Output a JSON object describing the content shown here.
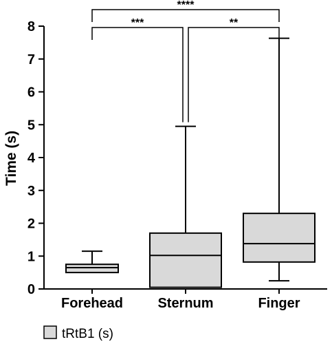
{
  "chart_data": {
    "type": "boxplot",
    "ylabel": "Time (s)",
    "ylim": [
      0,
      8
    ],
    "yticks": [
      0,
      1,
      2,
      3,
      4,
      5,
      6,
      7,
      8
    ],
    "categories": [
      "Forehead",
      "Sternum",
      "Finger"
    ],
    "series": [
      {
        "name": "tRtB1 (s)",
        "color": "#d9d9d9",
        "boxes": [
          {
            "min": 0.5,
            "q1": 0.5,
            "median": 0.65,
            "q3": 0.75,
            "max": 1.15
          },
          {
            "min": 0.05,
            "q1": 0.05,
            "median": 1.02,
            "q3": 1.7,
            "max": 4.95
          },
          {
            "min": 0.25,
            "q1": 0.82,
            "median": 1.38,
            "q3": 2.3,
            "max": 7.63
          }
        ]
      }
    ],
    "significance": [
      {
        "from": "Forehead",
        "to": "Finger",
        "label": "****"
      },
      {
        "from": "Forehead",
        "to": "Sternum",
        "label": "***"
      },
      {
        "from": "Sternum",
        "to": "Finger",
        "label": "**"
      }
    ],
    "legend": {
      "position": "bottom-left",
      "label": "tRtB1 (s)"
    }
  }
}
